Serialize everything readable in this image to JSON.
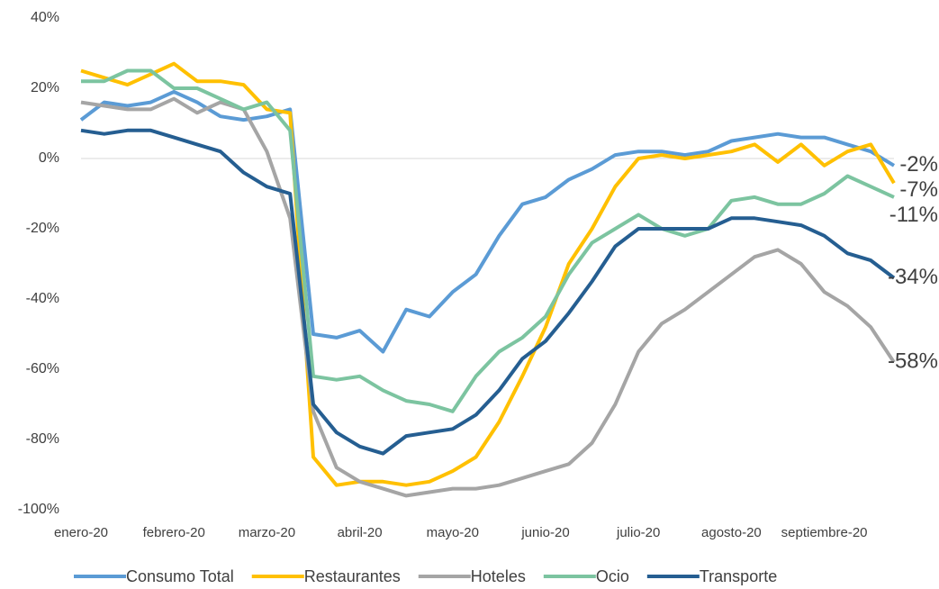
{
  "chart_data": {
    "type": "line",
    "categories": [
      "enero-20",
      null,
      null,
      null,
      "febrero-20",
      null,
      null,
      null,
      "marzo-20",
      null,
      null,
      null,
      "abril-20",
      null,
      null,
      null,
      "mayo-20",
      null,
      null,
      null,
      "junio-20",
      null,
      null,
      null,
      "julio-20",
      null,
      null,
      null,
      "agosto-20",
      null,
      null,
      null,
      "septiembre-20",
      null,
      null,
      null
    ],
    "ylim": [
      -100,
      40
    ],
    "yticks": [
      {
        "value": -100,
        "label": "-100%"
      },
      {
        "value": -80,
        "label": "-80%"
      },
      {
        "value": -60,
        "label": "-60%"
      },
      {
        "value": -40,
        "label": "-40%"
      },
      {
        "value": -20,
        "label": "-20%"
      },
      {
        "value": 0,
        "label": "0%"
      },
      {
        "value": 20,
        "label": "20%"
      },
      {
        "value": 40,
        "label": "40%"
      }
    ],
    "legend": "bottom",
    "series": [
      {
        "name": "Consumo Total",
        "color": "#5b9bd5",
        "end_label": "-2%",
        "values": [
          11,
          16,
          15,
          16,
          19,
          16,
          12,
          11,
          12,
          14,
          -50,
          -51,
          -49,
          -55,
          -43,
          -45,
          -38,
          -33,
          -22,
          -13,
          -11,
          -6,
          -3,
          1,
          2,
          2,
          1,
          2,
          5,
          6,
          7,
          6,
          6,
          4,
          2,
          -2
        ]
      },
      {
        "name": "Restaurantes",
        "color": "#ffc000",
        "end_label": "-7%",
        "values": [
          25,
          23,
          21,
          24,
          27,
          22,
          22,
          21,
          14,
          13,
          -85,
          -93,
          -92,
          -92,
          -93,
          -92,
          -89,
          -85,
          -75,
          -62,
          -48,
          -30,
          -20,
          -8,
          0,
          1,
          0,
          1,
          2,
          4,
          -1,
          4,
          -2,
          2,
          4,
          -7
        ]
      },
      {
        "name": "Hoteles",
        "color": "#a5a5a5",
        "end_label": "-58%",
        "values": [
          16,
          15,
          14,
          14,
          17,
          13,
          16,
          14,
          2,
          -17,
          -72,
          -88,
          -92,
          -94,
          -96,
          -95,
          -94,
          -94,
          -93,
          -91,
          -89,
          -87,
          -81,
          -70,
          -55,
          -47,
          -43,
          -38,
          -33,
          -28,
          -26,
          -30,
          -38,
          -42,
          -48,
          -58
        ]
      },
      {
        "name": "Ocio",
        "color": "#7cc4a0",
        "end_label": "-11%",
        "values": [
          22,
          22,
          25,
          25,
          20,
          20,
          17,
          14,
          16,
          8,
          -62,
          -63,
          -62,
          -66,
          -69,
          -70,
          -72,
          -62,
          -55,
          -51,
          -45,
          -33,
          -24,
          -20,
          -16,
          -20,
          -22,
          -20,
          -12,
          -11,
          -13,
          -13,
          -10,
          -5,
          -8,
          -11
        ]
      },
      {
        "name": "Transporte",
        "color": "#255e91",
        "end_label": "-34%",
        "values": [
          8,
          7,
          8,
          8,
          6,
          4,
          2,
          -4,
          -8,
          -10,
          -70,
          -78,
          -82,
          -84,
          -79,
          -78,
          -77,
          -73,
          -66,
          -57,
          -52,
          -44,
          -35,
          -25,
          -20,
          -20,
          -20,
          -20,
          -17,
          -17,
          -18,
          -19,
          -22,
          -27,
          -29,
          -34
        ]
      }
    ]
  }
}
